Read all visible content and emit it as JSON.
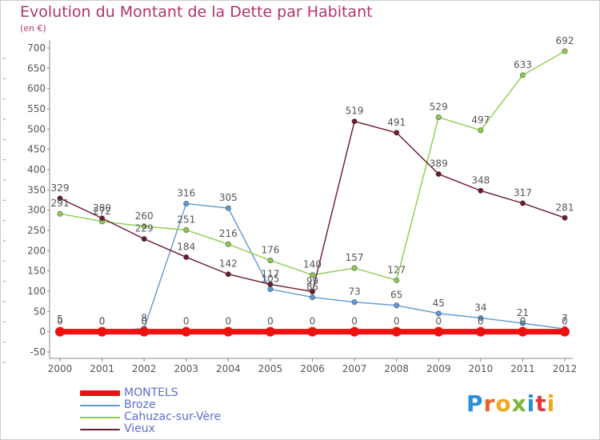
{
  "title": "Evolution du Montant de la Dette par Habitant",
  "unit_label": "(en €)",
  "logo": {
    "text": "Proxiti",
    "letter_colors": [
      "#2a8fd8",
      "#e8622c",
      "#f2a81d",
      "#7ab83a",
      "#2a8fd8",
      "#e23a3a",
      "#f2a81d"
    ]
  },
  "colors": {
    "title": "#b0336f",
    "axis": "#888888",
    "tick_label": "#555555",
    "value_label": "#555555",
    "legend_text": "#5a6fd0"
  },
  "chart_data": {
    "type": "line",
    "title": "Evolution du Montant de la Dette par Habitant",
    "ylabel": "(en €)",
    "xlabel": "",
    "x": [
      "2000",
      "2001",
      "2002",
      "2003",
      "2004",
      "2005",
      "2006",
      "2007",
      "2008",
      "2009",
      "2010",
      "2011",
      "2012"
    ],
    "ylim": [
      -50,
      700
    ],
    "yticks": [
      -50,
      0,
      50,
      100,
      150,
      200,
      250,
      300,
      350,
      400,
      450,
      500,
      550,
      600,
      650,
      700
    ],
    "grid": false,
    "legend_position": "bottom-left",
    "series": [
      {
        "name": "MONTELS",
        "color": "#ee1111",
        "thick": true,
        "values": [
          0,
          0,
          0,
          0,
          0,
          0,
          0,
          0,
          0,
          0,
          0,
          0,
          0
        ],
        "labels": [
          "0",
          "0",
          "0",
          "0",
          "0",
          "0",
          "0",
          "0",
          "0",
          "0",
          "0",
          "0",
          "0"
        ]
      },
      {
        "name": "Broze",
        "color": "#5b9bd5",
        "thick": false,
        "values": [
          5,
          0,
          8,
          316,
          305,
          105,
          85,
          73,
          65,
          45,
          34,
          21,
          7
        ],
        "labels": [
          "5",
          "0",
          "8",
          "316",
          "305",
          "105",
          "85",
          "73",
          "65",
          "45",
          "34",
          "21",
          "7"
        ]
      },
      {
        "name": "Cahuzac-sur-Vère",
        "color": "#8ccc4a",
        "thick": false,
        "values": [
          291,
          272,
          260,
          251,
          216,
          176,
          140,
          157,
          127,
          529,
          497,
          633,
          692
        ],
        "labels": [
          "291",
          "272",
          "260",
          "251",
          "216",
          "176",
          "140",
          "157",
          "127",
          "529",
          "497",
          "633",
          "692"
        ]
      },
      {
        "name": "Vieux",
        "color": "#6b1a2a",
        "thick": false,
        "values": [
          329,
          280,
          229,
          184,
          142,
          117,
          99,
          519,
          491,
          389,
          348,
          317,
          281
        ],
        "labels": [
          "329",
          "280",
          "229",
          "184",
          "142",
          "117",
          "99",
          "519",
          "491",
          "389",
          "348",
          "317",
          "281"
        ]
      }
    ]
  }
}
